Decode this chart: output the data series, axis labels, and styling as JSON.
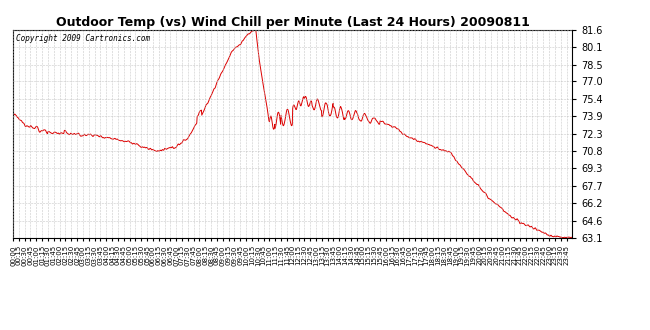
{
  "title": "Outdoor Temp (vs) Wind Chill per Minute (Last 24 Hours) 20090811",
  "copyright_text": "Copyright 2009 Cartronics.com",
  "line_color": "#dd0000",
  "background_color": "#ffffff",
  "grid_color": "#bbbbbb",
  "yticks": [
    63.1,
    64.6,
    66.2,
    67.7,
    69.3,
    70.8,
    72.3,
    73.9,
    75.4,
    77.0,
    78.5,
    80.1,
    81.6
  ],
  "ymin": 63.1,
  "ymax": 81.6,
  "title_fontsize": 9,
  "copyright_fontsize": 5.5,
  "ytick_fontsize": 7,
  "xtick_fontsize": 5
}
